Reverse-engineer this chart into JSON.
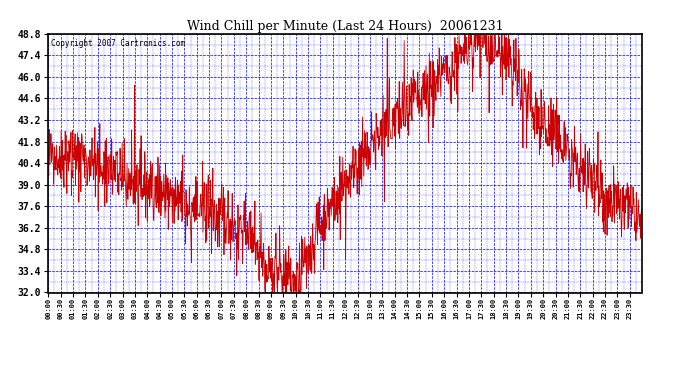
{
  "title": "Wind Chill per Minute (Last 24 Hours)  20061231",
  "copyright": "Copyright 2007 Cartronics.com",
  "ylabel_values": [
    32.0,
    33.4,
    34.8,
    36.2,
    37.6,
    39.0,
    40.4,
    41.8,
    43.2,
    44.6,
    46.0,
    47.4,
    48.8
  ],
  "ylim": [
    32.0,
    48.8
  ],
  "line_color": "#cc0000",
  "bg_color": "#ffffff",
  "plot_bg_color": "#ffffff",
  "grid_color": "#0000ff",
  "title_color": "#000000",
  "border_color": "#000000",
  "x_tick_labels": [
    "00:00",
    "00:30",
    "01:00",
    "01:30",
    "02:00",
    "02:30",
    "03:00",
    "03:30",
    "04:00",
    "04:30",
    "05:00",
    "05:30",
    "06:00",
    "06:30",
    "07:00",
    "07:30",
    "08:00",
    "08:30",
    "09:00",
    "09:30",
    "10:00",
    "10:30",
    "11:00",
    "11:30",
    "12:00",
    "12:30",
    "13:00",
    "13:30",
    "14:00",
    "14:30",
    "15:00",
    "15:30",
    "16:00",
    "16:30",
    "17:00",
    "17:30",
    "18:00",
    "18:30",
    "19:00",
    "19:30",
    "20:00",
    "20:30",
    "21:00",
    "21:30",
    "22:00",
    "22:30",
    "23:00",
    "23:30"
  ],
  "total_minutes": 1440,
  "seed": 42
}
